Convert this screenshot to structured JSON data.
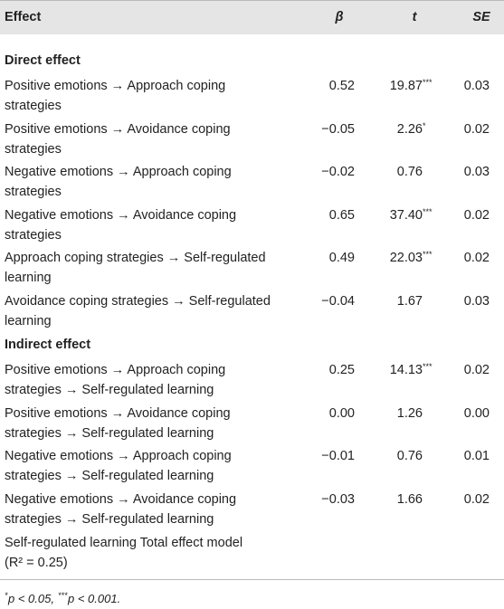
{
  "header": {
    "effect": "Effect",
    "beta": "β",
    "t": "t",
    "se": "SE"
  },
  "sections": [
    {
      "title": "Direct effect",
      "rows": [
        {
          "effect": [
            "Positive emotions →  Approach coping",
            "strategies"
          ],
          "beta": "0.52",
          "t": "19.87",
          "sig": "***",
          "se": "0.03"
        },
        {
          "effect": [
            "Positive emotions →  Avoidance coping",
            "strategies"
          ],
          "beta": "−0.05",
          "t": "2.26",
          "sig": "*",
          "se": "0.02"
        },
        {
          "effect": [
            "Negative emotions →  Approach coping",
            "strategies"
          ],
          "beta": "−0.02",
          "t": "0.76",
          "se": "0.03"
        },
        {
          "effect": [
            "Negative emotions →  Avoidance coping",
            "strategies"
          ],
          "beta": "0.65",
          "t": "37.40",
          "sig": "***",
          "se": "0.02"
        },
        {
          "effect": [
            "Approach coping strategies →  Self-regulated",
            "learning"
          ],
          "beta": "0.49",
          "t": "22.03",
          "sig": "***",
          "se": "0.02"
        },
        {
          "effect": [
            "Avoidance coping strategies →  Self-regulated",
            "learning"
          ],
          "beta": "−0.04",
          "t": "1.67",
          "se": "0.03"
        }
      ]
    },
    {
      "title": "Indirect effect",
      "rows": [
        {
          "effect": [
            "Positive emotions →  Approach coping",
            "strategies →  Self-regulated learning"
          ],
          "beta": "0.25",
          "t": "14.13",
          "sig": "***",
          "se": "0.02"
        },
        {
          "effect": [
            "Positive emotions →  Avoidance coping",
            "strategies →  Self-regulated learning"
          ],
          "beta": "0.00",
          "t": "1.26",
          "se": "0.00"
        },
        {
          "effect": [
            "Negative emotions →  Approach coping",
            "strategies →  Self-regulated learning"
          ],
          "beta": "−0.01",
          "t": "0.76",
          "se": "0.01"
        },
        {
          "effect": [
            "Negative emotions →  Avoidance coping",
            "strategies →  Self-regulated learning"
          ],
          "beta": "−0.03",
          "t": "1.66",
          "se": "0.02"
        }
      ]
    }
  ],
  "total": [
    "Self-regulated learning Total effect model",
    "(R² = 0.25)"
  ],
  "footnote": [
    {
      "mark": "*",
      "text": "p < 0.05, "
    },
    {
      "mark": "***",
      "text": "p < 0.001."
    }
  ]
}
